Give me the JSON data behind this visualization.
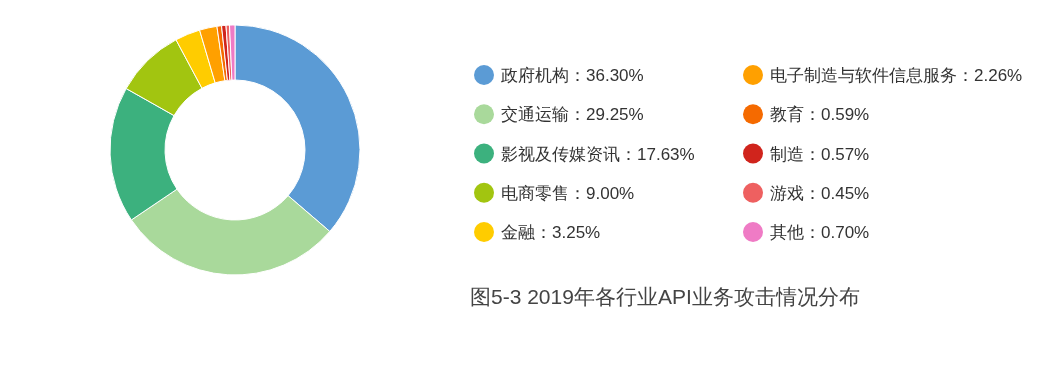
{
  "chart_data": {
    "type": "donut",
    "title": "图5-3  2019年各行业API业务攻击情况分布",
    "categories": [
      "政府机构",
      "交通运输",
      "影视及传媒资讯",
      "电商零售",
      "金融",
      "电子制造与软件信息服务",
      "教育",
      "制造",
      "游戏",
      "其他"
    ],
    "values": [
      36.3,
      29.25,
      17.63,
      9.0,
      3.25,
      2.26,
      0.59,
      0.57,
      0.45,
      0.7
    ],
    "value_labels": [
      "36.30%",
      "29.25%",
      "17.63%",
      "9.00%",
      "3.25%",
      "2.26%",
      "0.59%",
      "0.57%",
      "0.45%",
      "0.70%"
    ],
    "colors": [
      "#5b9bd5",
      "#a9d99b",
      "#3cb17e",
      "#a2c510",
      "#ffcc00",
      "#ffa000",
      "#f56a00",
      "#d0241c",
      "#ee6060",
      "#ef7bc5"
    ],
    "legend": "right"
  }
}
